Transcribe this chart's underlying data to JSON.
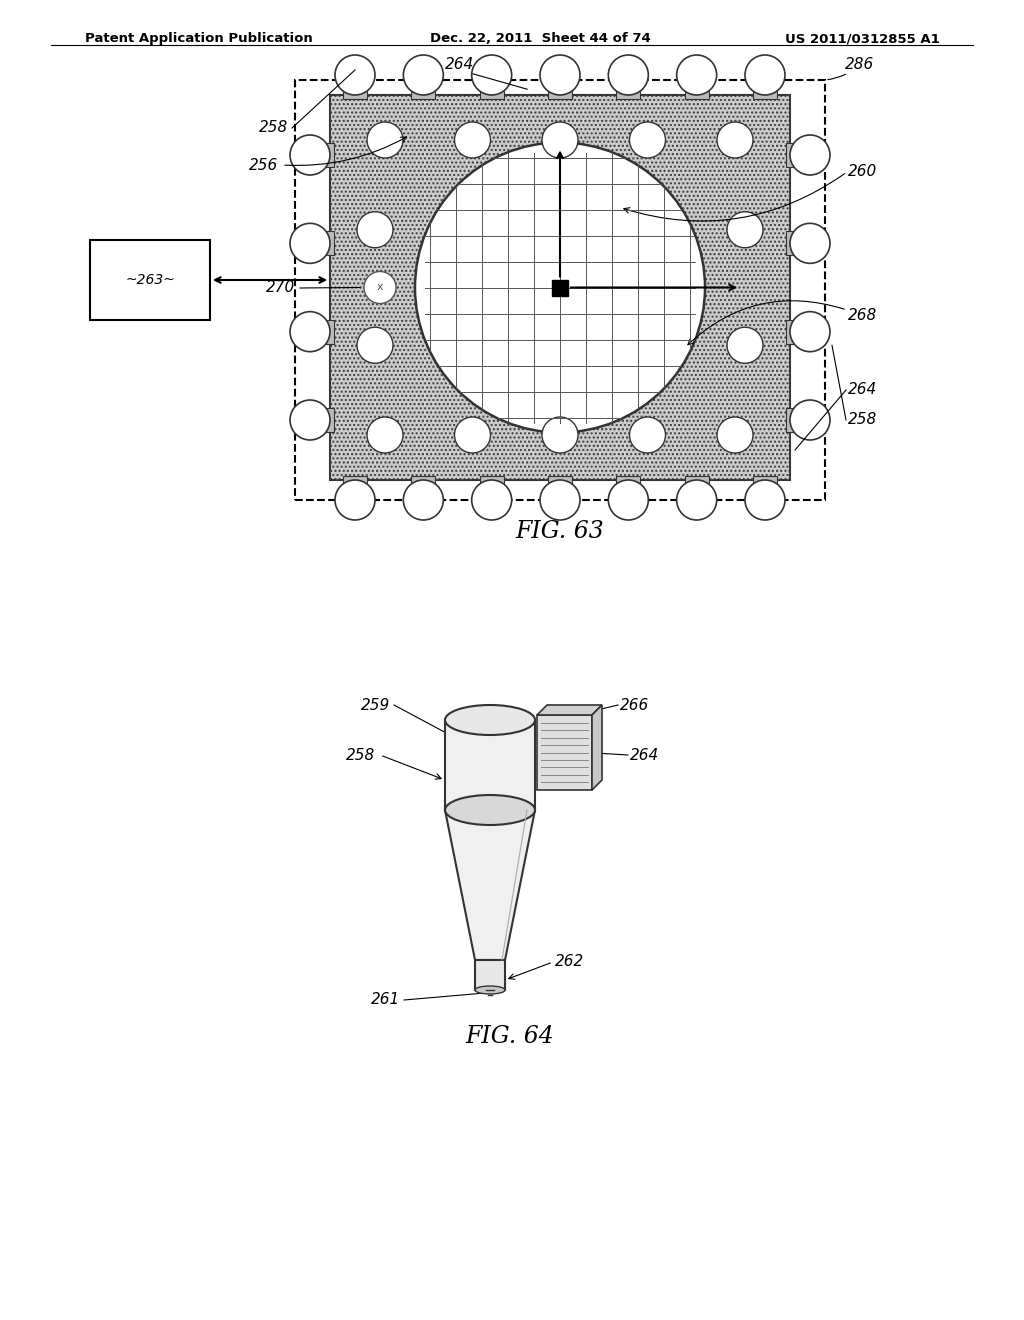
{
  "bg_color": "#ffffff",
  "header_left": "Patent Application Publication",
  "header_mid": "Dec. 22, 2011  Sheet 44 of 74",
  "header_right": "US 2011/0312855 A1",
  "fig63_label": "FIG. 63",
  "fig64_label": "FIG. 64",
  "hatch_color": "#aaaaaa",
  "board_fill": "#cccccc",
  "ball_fill": "#f0f0f0",
  "line_color": "#333333"
}
